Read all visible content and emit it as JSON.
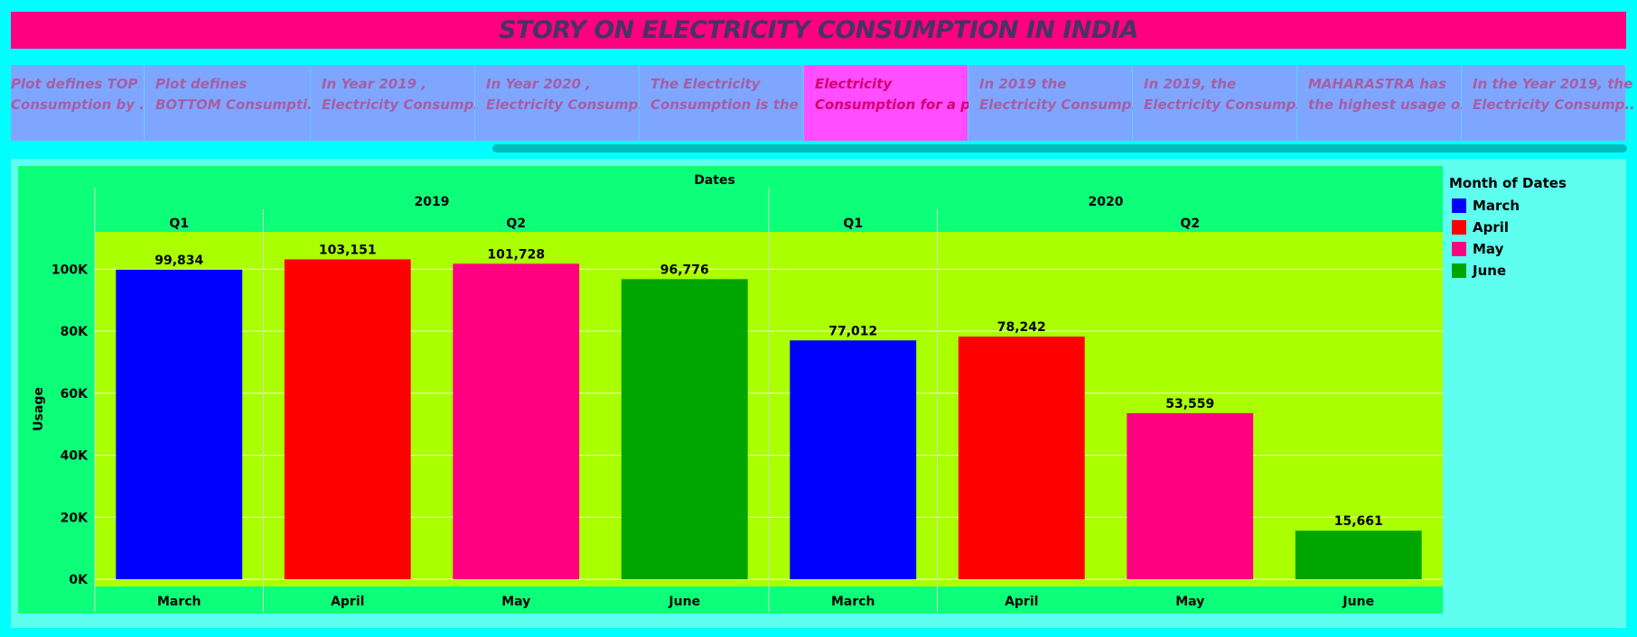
{
  "title": "STORY ON ELECTRICITY CONSUMPTION IN INDIA",
  "story_points": [
    {
      "line1": "Plot defines TOP",
      "line2": "Consumption by ..",
      "active": false
    },
    {
      "line1": "Plot defines",
      "line2": "BOTTOM Consumpti..",
      "active": false
    },
    {
      "line1": "In Year 2019 ,",
      "line2": "Electricity Consump..",
      "active": false
    },
    {
      "line1": "In Year 2020 ,",
      "line2": "Electricity Consump..",
      "active": false
    },
    {
      "line1": "The Electricity",
      "line2": "Consumption is the ..",
      "active": false
    },
    {
      "line1": "Electricity",
      "line2": "Consumption for a p..",
      "active": true
    },
    {
      "line1": "In 2019 the",
      "line2": "Electricity Consump..",
      "active": false
    },
    {
      "line1": "In 2019, the",
      "line2": "Electricity Consump..",
      "active": false
    },
    {
      "line1": "MAHARASTRA has",
      "line2": "the highest usage o..",
      "active": false
    },
    {
      "line1": "In the Year 2019, the",
      "line2": "Electricity Consump..",
      "active": false
    }
  ],
  "legend": {
    "title": "Month of Dates",
    "items": [
      {
        "label": "March",
        "color": "#0000ff"
      },
      {
        "label": "April",
        "color": "#ff0000"
      },
      {
        "label": "May",
        "color": "#ff0080"
      },
      {
        "label": "June",
        "color": "#00a600"
      }
    ]
  },
  "colors": {
    "plot_bg": "#aaff00",
    "header_bg": "#0dff7a"
  },
  "chart_data": {
    "type": "bar",
    "column_header": "Dates",
    "ylabel": "Usage",
    "ylim": [
      0,
      112000
    ],
    "yticks": [
      0,
      20000,
      40000,
      60000,
      80000,
      100000
    ],
    "ytick_labels": [
      "0K",
      "20K",
      "40K",
      "60K",
      "80K",
      "100K"
    ],
    "grid": true,
    "years": [
      {
        "label": "2019",
        "quarters": [
          {
            "label": "Q1",
            "span": 1
          },
          {
            "label": "Q2",
            "span": 3
          }
        ]
      },
      {
        "label": "2020",
        "quarters": [
          {
            "label": "Q1",
            "span": 1
          },
          {
            "label": "Q2",
            "span": 3
          }
        ]
      }
    ],
    "bars": [
      {
        "year": "2019",
        "quarter": "Q1",
        "month": "March",
        "value": 99834,
        "label": "99,834",
        "color": "#0000ff"
      },
      {
        "year": "2019",
        "quarter": "Q2",
        "month": "April",
        "value": 103151,
        "label": "103,151",
        "color": "#ff0000"
      },
      {
        "year": "2019",
        "quarter": "Q2",
        "month": "May",
        "value": 101728,
        "label": "101,728",
        "color": "#ff0080"
      },
      {
        "year": "2019",
        "quarter": "Q2",
        "month": "June",
        "value": 96776,
        "label": "96,776",
        "color": "#00a600"
      },
      {
        "year": "2020",
        "quarter": "Q1",
        "month": "March",
        "value": 77012,
        "label": "77,012",
        "color": "#0000ff"
      },
      {
        "year": "2020",
        "quarter": "Q2",
        "month": "April",
        "value": 78242,
        "label": "78,242",
        "color": "#ff0000"
      },
      {
        "year": "2020",
        "quarter": "Q2",
        "month": "May",
        "value": 53559,
        "label": "53,559",
        "color": "#ff0080"
      },
      {
        "year": "2020",
        "quarter": "Q2",
        "month": "June",
        "value": 15661,
        "label": "15,661",
        "color": "#00a600"
      }
    ]
  }
}
